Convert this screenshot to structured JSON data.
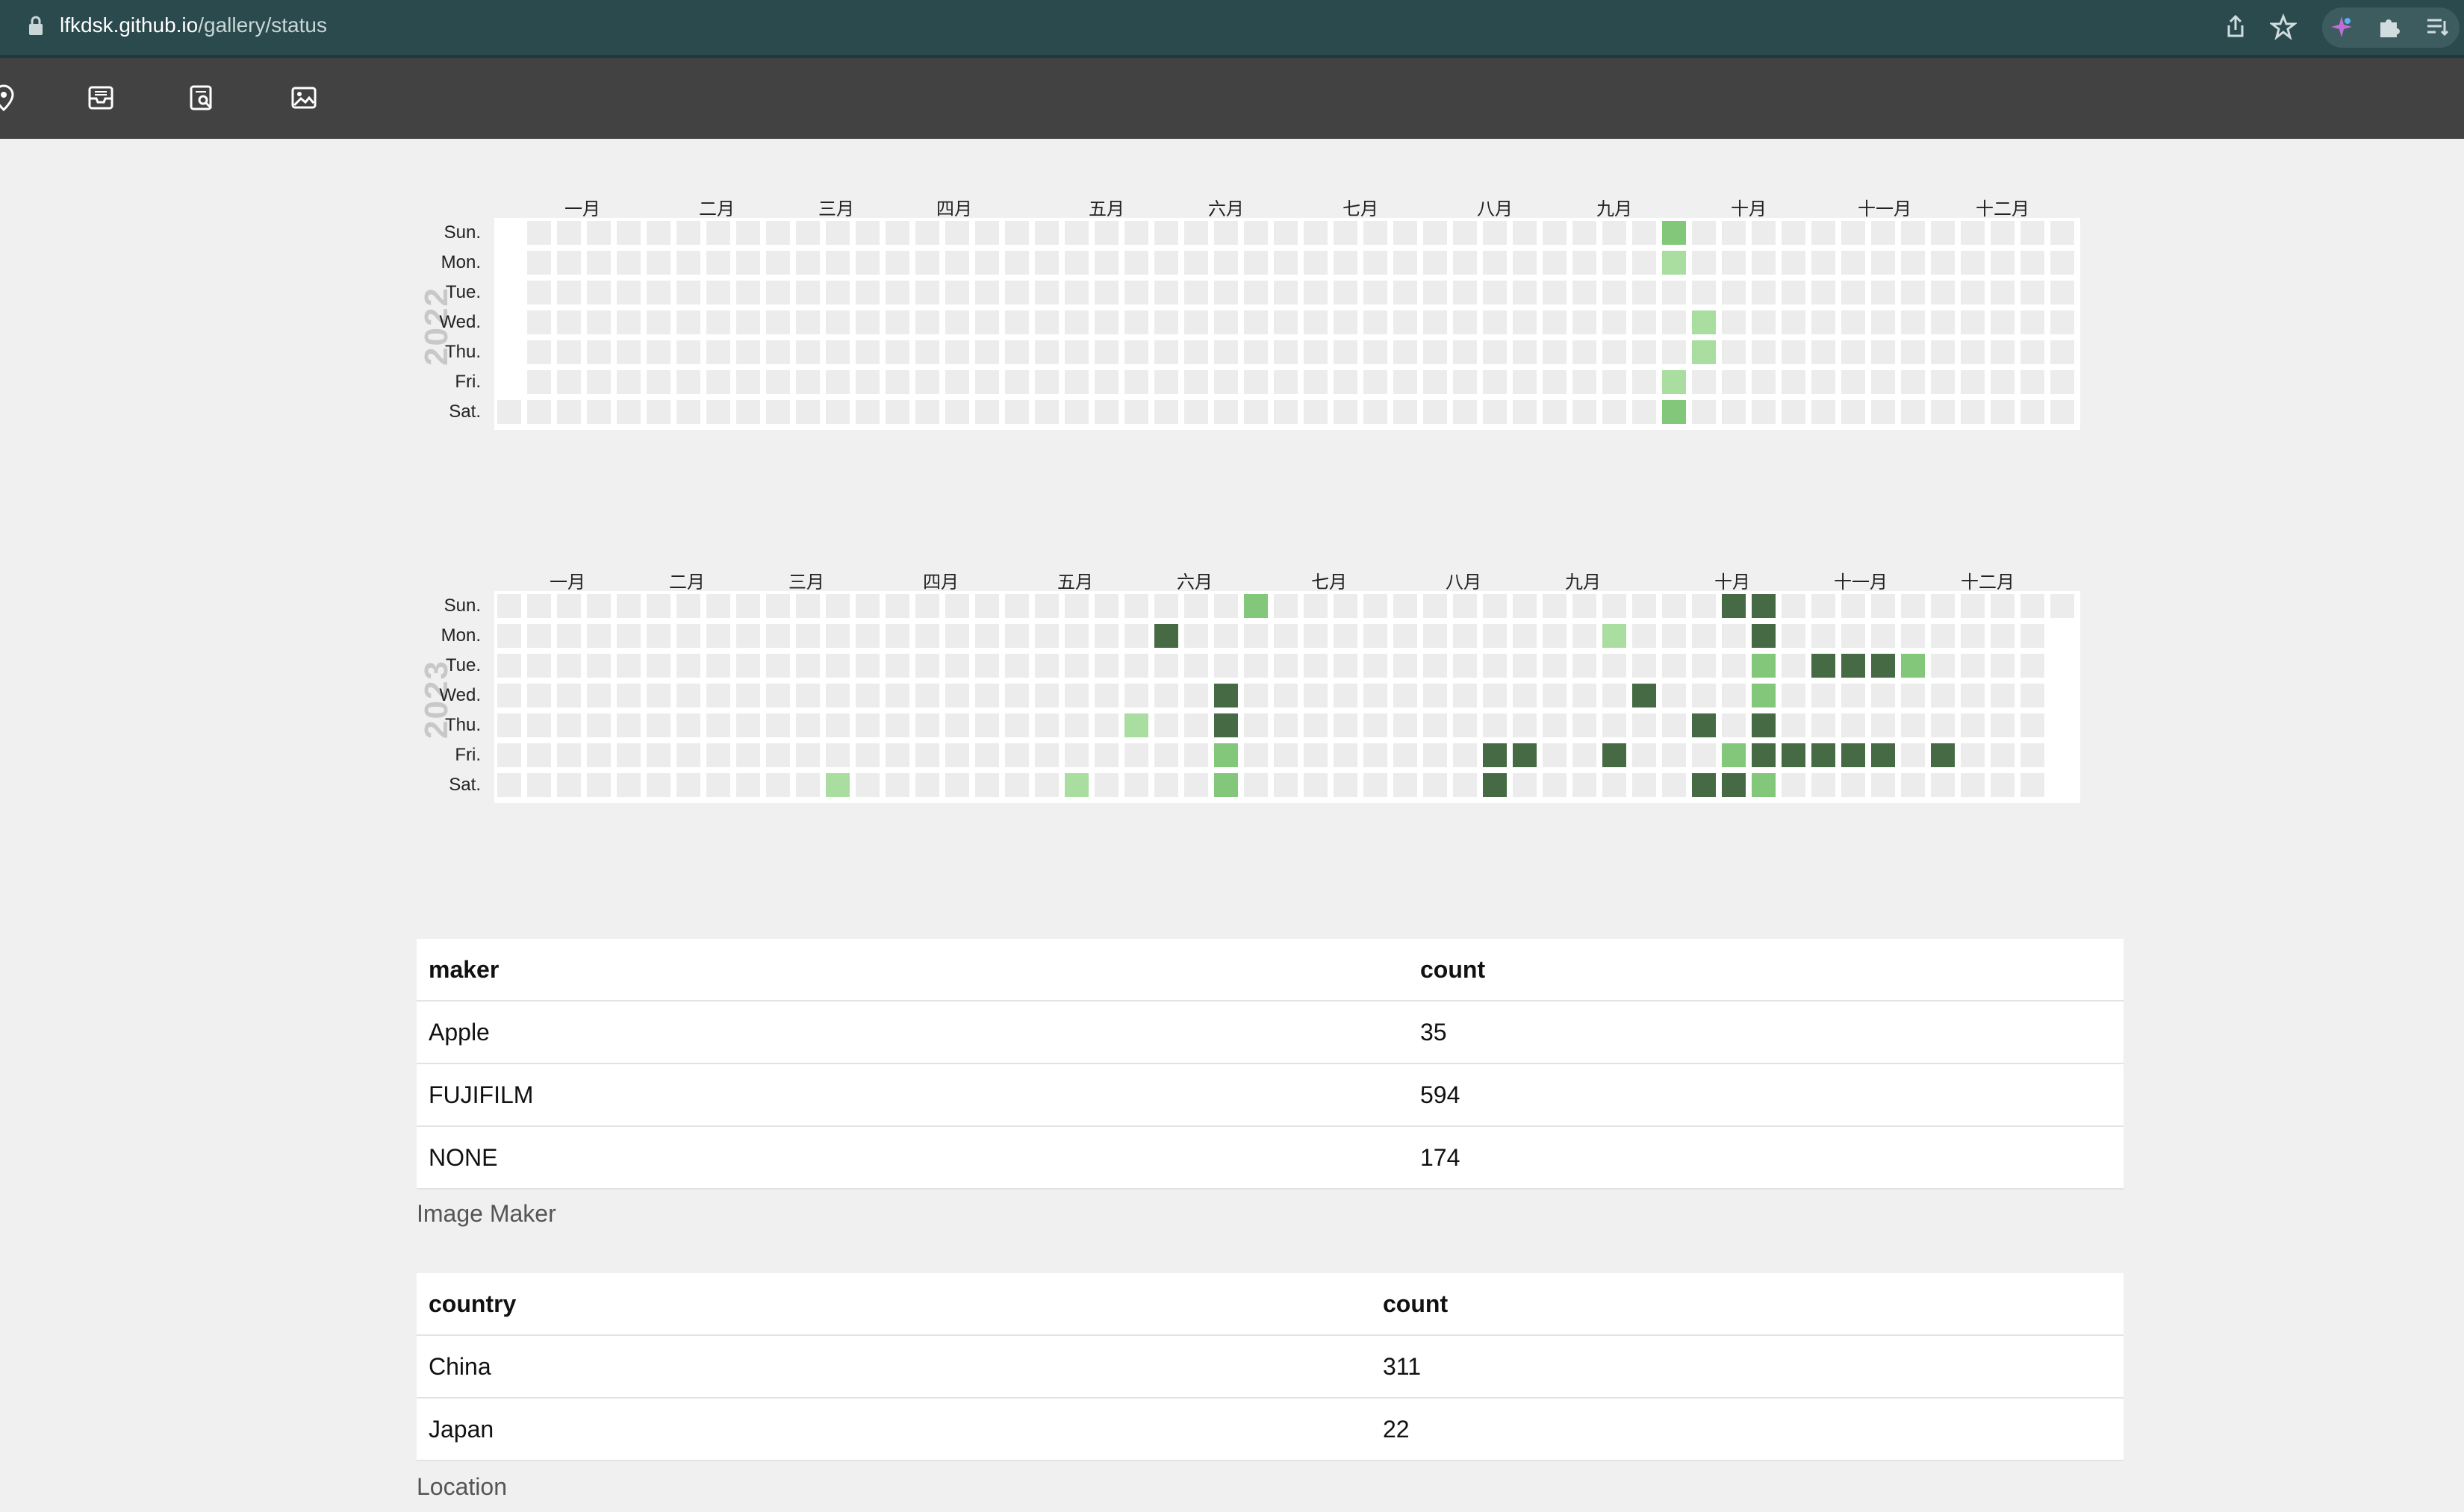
{
  "browser": {
    "url_host": "lfkdsk.github.io",
    "url_path": "/gallery/status"
  },
  "toolbar": {
    "icons": [
      "location-pin-icon",
      "inbox-icon",
      "search-document-icon",
      "image-icon"
    ]
  },
  "heatmap_colors": {
    "empty": "#ececec",
    "level1": "#a9dea0",
    "level2": "#82c77a",
    "level3": "#466b44"
  },
  "day_labels": [
    "Sun.",
    "Mon.",
    "Tue.",
    "Wed.",
    "Thu.",
    "Fri.",
    "Sat."
  ],
  "heatmaps": [
    {
      "year": "2022",
      "months": [
        "一月",
        "二月",
        "三月",
        "四月",
        "五月",
        "六月",
        "七月",
        "八月",
        "九月",
        "十月",
        "十一月",
        "十二月"
      ],
      "active_days": [
        {
          "week": 39,
          "day": 0,
          "level": 2
        },
        {
          "week": 39,
          "day": 1,
          "level": 1
        },
        {
          "week": 40,
          "day": 3,
          "level": 1
        },
        {
          "week": 40,
          "day": 4,
          "level": 1
        },
        {
          "week": 39,
          "day": 5,
          "level": 1
        },
        {
          "week": 39,
          "day": 6,
          "level": 2
        }
      ]
    },
    {
      "year": "2023",
      "months": [
        "一月",
        "二月",
        "三月",
        "四月",
        "五月",
        "六月",
        "七月",
        "八月",
        "九月",
        "十月",
        "十一月",
        "十二月"
      ],
      "active_days": [
        {
          "week": 25,
          "day": 0,
          "level": 2
        },
        {
          "week": 41,
          "day": 0,
          "level": 3
        },
        {
          "week": 42,
          "day": 0,
          "level": 3
        },
        {
          "week": 22,
          "day": 1,
          "level": 3
        },
        {
          "week": 37,
          "day": 1,
          "level": 1
        },
        {
          "week": 42,
          "day": 1,
          "level": 3
        },
        {
          "week": 42,
          "day": 2,
          "level": 2
        },
        {
          "week": 44,
          "day": 2,
          "level": 3
        },
        {
          "week": 45,
          "day": 2,
          "level": 3
        },
        {
          "week": 46,
          "day": 2,
          "level": 3
        },
        {
          "week": 47,
          "day": 2,
          "level": 2
        },
        {
          "week": 24,
          "day": 3,
          "level": 3
        },
        {
          "week": 38,
          "day": 3,
          "level": 3
        },
        {
          "week": 42,
          "day": 3,
          "level": 2
        },
        {
          "week": 21,
          "day": 4,
          "level": 1
        },
        {
          "week": 24,
          "day": 4,
          "level": 3
        },
        {
          "week": 40,
          "day": 4,
          "level": 3
        },
        {
          "week": 42,
          "day": 4,
          "level": 3
        },
        {
          "week": 24,
          "day": 5,
          "level": 2
        },
        {
          "week": 33,
          "day": 5,
          "level": 3
        },
        {
          "week": 34,
          "day": 5,
          "level": 3
        },
        {
          "week": 37,
          "day": 5,
          "level": 3
        },
        {
          "week": 41,
          "day": 5,
          "level": 2
        },
        {
          "week": 42,
          "day": 5,
          "level": 3
        },
        {
          "week": 43,
          "day": 5,
          "level": 3
        },
        {
          "week": 44,
          "day": 5,
          "level": 3
        },
        {
          "week": 45,
          "day": 5,
          "level": 3
        },
        {
          "week": 46,
          "day": 5,
          "level": 3
        },
        {
          "week": 48,
          "day": 5,
          "level": 3
        },
        {
          "week": 11,
          "day": 6,
          "level": 1
        },
        {
          "week": 19,
          "day": 6,
          "level": 1
        },
        {
          "week": 24,
          "day": 6,
          "level": 2
        },
        {
          "week": 33,
          "day": 6,
          "level": 3
        },
        {
          "week": 40,
          "day": 6,
          "level": 3
        },
        {
          "week": 41,
          "day": 6,
          "level": 3
        },
        {
          "week": 42,
          "day": 6,
          "level": 2
        }
      ]
    }
  ],
  "maker_table": {
    "headers": [
      "maker",
      "count"
    ],
    "rows": [
      [
        "Apple",
        "35"
      ],
      [
        "FUJIFILM",
        "594"
      ],
      [
        "NONE",
        "174"
      ]
    ],
    "caption": "Image Maker"
  },
  "country_table": {
    "headers": [
      "country",
      "count"
    ],
    "rows": [
      [
        "China",
        "311"
      ],
      [
        "Japan",
        "22"
      ]
    ],
    "caption": "Location"
  }
}
